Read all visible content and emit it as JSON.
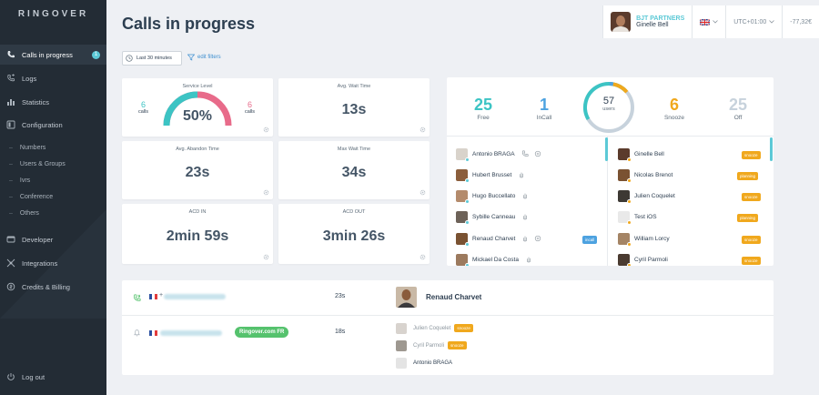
{
  "app": {
    "logo": "RINGOVER"
  },
  "sidebar": {
    "items": [
      {
        "label": "Calls in progress",
        "badge": "1"
      },
      {
        "label": "Logs"
      },
      {
        "label": "Statistics"
      },
      {
        "label": "Configuration"
      },
      {
        "label": "Developer"
      },
      {
        "label": "Integrations"
      },
      {
        "label": "Credits & Billing"
      }
    ],
    "subitems": [
      "Numbers",
      "Users & Groups",
      "Ivrs",
      "Conference",
      "Others"
    ],
    "logout": "Log out"
  },
  "header": {
    "title": "Calls in progress",
    "company": "BJT PARTNERS",
    "user": "Ginelle Bell",
    "timezone": "UTC+01:00",
    "credit": "-77,32€"
  },
  "filters": {
    "period": "Last 30 minutes",
    "edit": "edit filters"
  },
  "stats": {
    "service_level": {
      "title": "Service Level",
      "value": "50%",
      "left_num": "6",
      "left_lbl": "calls",
      "right_num": "6",
      "right_lbl": "calls",
      "ratio": 0.5
    },
    "avg_wait": {
      "title": "Avg. Wait Time",
      "value": "13s"
    },
    "avg_abandon": {
      "title": "Avg. Abandon Time",
      "value": "23s"
    },
    "max_wait": {
      "title": "Max Wait Time",
      "value": "34s"
    },
    "acd_in": {
      "title": "ACD IN",
      "value": "2min 59s"
    },
    "acd_out": {
      "title": "ACD OUT",
      "value": "3min 26s"
    }
  },
  "agents": {
    "free": {
      "num": "25",
      "label": "Free"
    },
    "incall": {
      "num": "1",
      "label": "InCall"
    },
    "users": {
      "num": "57",
      "label": "users"
    },
    "snooze": {
      "num": "6",
      "label": "Snooze"
    },
    "off": {
      "num": "25",
      "label": "Off"
    },
    "left": [
      {
        "name": "Antonio BRAGA",
        "status": "#5cc9d6"
      },
      {
        "name": "Hubert Brusset",
        "status": "#5cc9d6"
      },
      {
        "name": "Hugo Buccellato",
        "status": "#5cc9d6"
      },
      {
        "name": "Sybille Canneau",
        "status": "#5cc9d6"
      },
      {
        "name": "Renaud Charvet",
        "status": "#5cc9d6",
        "tag": "incall"
      },
      {
        "name": "Mickael Da Costa",
        "status": "#5cc9d6"
      }
    ],
    "right": [
      {
        "name": "Ginelle Bell",
        "tag": "snooze"
      },
      {
        "name": "Nicolas Brenot",
        "tag": "planning"
      },
      {
        "name": "Julien Coquelet",
        "tag": "snooze"
      },
      {
        "name": "Test iOS",
        "tag": "planning"
      },
      {
        "name": "William Lorcy",
        "tag": "snooze"
      },
      {
        "name": "Cyril Parmoli",
        "tag": "snooze"
      }
    ]
  },
  "calls": {
    "row1": {
      "prefix": "+",
      "duration": "23s",
      "agent": "Renaud Charvet"
    },
    "row2": {
      "group": "Ringover.com FR",
      "duration": "18s",
      "ringing": [
        {
          "name": "Julien Coquelet",
          "tag": "snooze"
        },
        {
          "name": "Cyril Parmoli",
          "tag": "snooze"
        },
        {
          "name": "Antonio BRAGA"
        }
      ]
    }
  },
  "colors": {
    "teal": "#5cc9d6",
    "pink": "#e86b8a",
    "orange": "#f0a81d",
    "blue": "#4da2e0",
    "green": "#55c26d"
  }
}
